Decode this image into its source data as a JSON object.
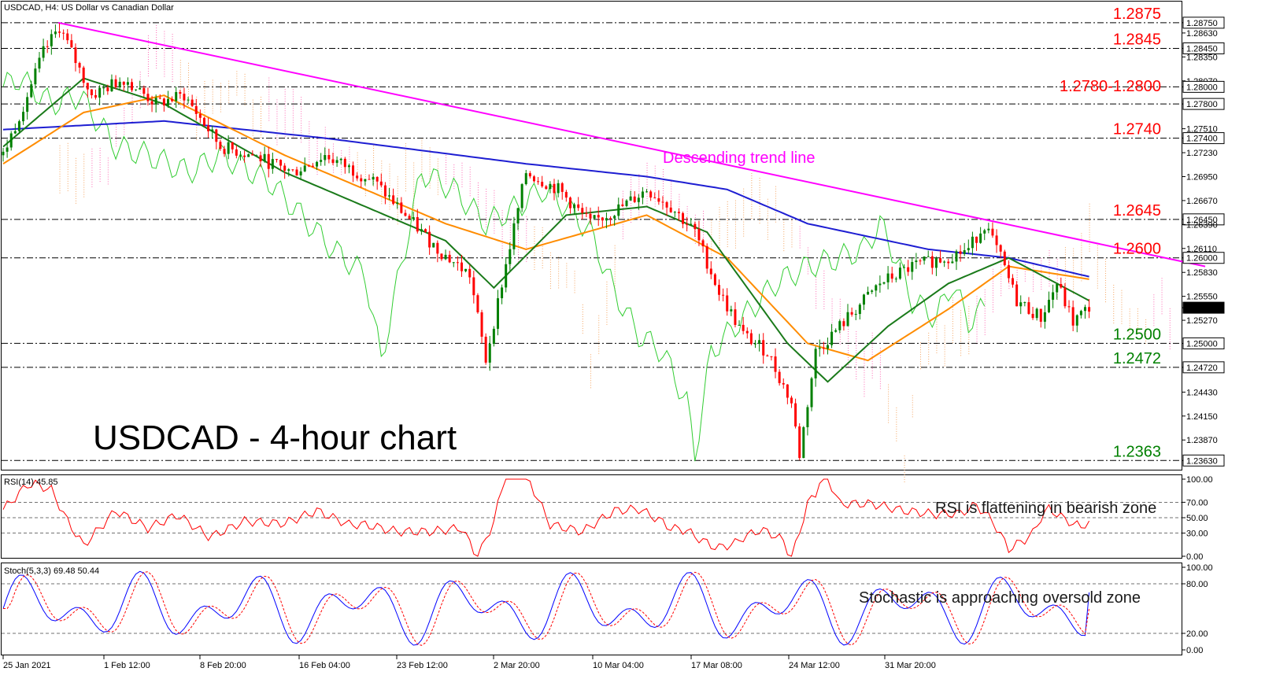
{
  "chart_data": [
    {
      "type": "candlestick",
      "header": "USDCAD, H4:  US Dollar vs Canadian Dollar",
      "title": "USDCAD - 4-hour chart",
      "ylim": [
        1.2355,
        1.2885
      ],
      "grid": false,
      "price_ticks": [
        "1.28750",
        "1.28630",
        "1.28450",
        "1.28350",
        "1.28070",
        "1.28000",
        "1.27800",
        "1.27510",
        "1.27400",
        "1.27230",
        "1.26950",
        "1.26670",
        "1.26450",
        "1.26390",
        "1.26110",
        "1.26000",
        "1.25830",
        "1.25550",
        "1.25417",
        "1.25270",
        "1.25000",
        "1.24720",
        "1.24430",
        "1.24150",
        "1.23870",
        "1.23630"
      ],
      "price_boxed": [
        "1.28750",
        "1.28450",
        "1.28000",
        "1.27800",
        "1.27400",
        "1.26450",
        "1.26000",
        "1.25417",
        "1.25000",
        "1.24720",
        "1.23630"
      ],
      "x_ticks": [
        "25 Jan 2021",
        "1 Feb 12:00",
        "8 Feb 20:00",
        "16 Feb 04:00",
        "23 Feb 12:00",
        "2 Mar 20:00",
        "10 Mar 04:00",
        "17 Mar 08:00",
        "24 Mar 12:00",
        "31 Mar 20:00"
      ],
      "levels": [
        {
          "label": "1.2875",
          "value": 1.2875,
          "color": "#ff0000"
        },
        {
          "label": "1.2845",
          "value": 1.2845,
          "color": "#ff0000"
        },
        {
          "label": "1.2780-1.2800",
          "value": 1.279,
          "lines": [
            1.278,
            1.28
          ],
          "color": "#ff0000"
        },
        {
          "label": "1.2740",
          "value": 1.274,
          "color": "#ff0000"
        },
        {
          "label": "1.2645",
          "value": 1.2645,
          "color": "#ff0000"
        },
        {
          "label": "1.2600",
          "value": 1.26,
          "color": "#ff0000"
        },
        {
          "label": "1.2500",
          "value": 1.25,
          "color": "#008000"
        },
        {
          "label": "1.2472",
          "value": 1.2472,
          "color": "#008000"
        },
        {
          "label": "1.2363",
          "value": 1.2363,
          "color": "#008000"
        }
      ],
      "trendline": {
        "label": "Descending trend line",
        "color": "#ff00ff",
        "from": [
          0,
          1.2875
        ],
        "to": [
          292,
          1.259
        ]
      },
      "ohlc_anchors": [
        [
          0,
          1.272
        ],
        [
          6,
          1.279
        ],
        [
          10,
          1.284
        ],
        [
          14,
          1.287
        ],
        [
          22,
          1.279
        ],
        [
          30,
          1.281
        ],
        [
          38,
          1.278
        ],
        [
          45,
          1.279
        ],
        [
          54,
          1.273
        ],
        [
          62,
          1.272
        ],
        [
          72,
          1.27
        ],
        [
          80,
          1.272
        ],
        [
          92,
          1.269
        ],
        [
          100,
          1.265
        ],
        [
          108,
          1.261
        ],
        [
          116,
          1.258
        ],
        [
          120,
          1.248
        ],
        [
          124,
          1.257
        ],
        [
          130,
          1.27
        ],
        [
          138,
          1.268
        ],
        [
          146,
          1.264
        ],
        [
          154,
          1.266
        ],
        [
          160,
          1.268
        ],
        [
          166,
          1.266
        ],
        [
          172,
          1.263
        ],
        [
          178,
          1.256
        ],
        [
          184,
          1.251
        ],
        [
          190,
          1.249
        ],
        [
          196,
          1.243
        ],
        [
          198,
          1.237
        ],
        [
          202,
          1.249
        ],
        [
          210,
          1.253
        ],
        [
          218,
          1.257
        ],
        [
          226,
          1.259
        ],
        [
          234,
          1.26
        ],
        [
          240,
          1.261
        ],
        [
          244,
          1.264
        ],
        [
          248,
          1.26
        ],
        [
          252,
          1.255
        ],
        [
          258,
          1.253
        ],
        [
          262,
          1.257
        ],
        [
          266,
          1.2525
        ],
        [
          270,
          1.2542
        ]
      ],
      "indicators": {
        "ma_blue_slow": [
          [
            0,
            1.275
          ],
          [
            40,
            1.276
          ],
          [
            80,
            1.274
          ],
          [
            130,
            1.271
          ],
          [
            160,
            1.2695
          ],
          [
            180,
            1.268
          ],
          [
            200,
            1.264
          ],
          [
            230,
            1.261
          ],
          [
            250,
            1.26
          ],
          [
            270,
            1.2578
          ]
        ],
        "ma_orange": [
          [
            0,
            1.271
          ],
          [
            20,
            1.277
          ],
          [
            40,
            1.279
          ],
          [
            70,
            1.272
          ],
          [
            110,
            1.264
          ],
          [
            130,
            1.261
          ],
          [
            160,
            1.265
          ],
          [
            180,
            1.26
          ],
          [
            200,
            1.25
          ],
          [
            215,
            1.248
          ],
          [
            235,
            1.254
          ],
          [
            250,
            1.259
          ],
          [
            270,
            1.2575
          ]
        ],
        "ma_green": [
          [
            0,
            1.273
          ],
          [
            20,
            1.281
          ],
          [
            40,
            1.278
          ],
          [
            70,
            1.27
          ],
          [
            110,
            1.262
          ],
          [
            122,
            1.2565
          ],
          [
            140,
            1.265
          ],
          [
            160,
            1.266
          ],
          [
            175,
            1.263
          ],
          [
            195,
            1.25
          ],
          [
            205,
            1.2455
          ],
          [
            220,
            1.252
          ],
          [
            235,
            1.257
          ],
          [
            250,
            1.26
          ],
          [
            270,
            1.255
          ]
        ]
      },
      "rsi": {
        "label": "RSI(14) 45.85",
        "value": 45.85,
        "ticks": [
          "100.00",
          "70.00",
          "50.00",
          "30.00",
          "0.00"
        ],
        "note": "RSI is flattening in bearish zone"
      },
      "stoch": {
        "label": "Stoch(5,3,3) 69.48 50.44",
        "k": 69.48,
        "d": 50.44,
        "ticks": [
          "100.00",
          "80.00",
          "20.00",
          "0.00"
        ],
        "note": "Stochastic is approaching oversold zone"
      }
    }
  ]
}
